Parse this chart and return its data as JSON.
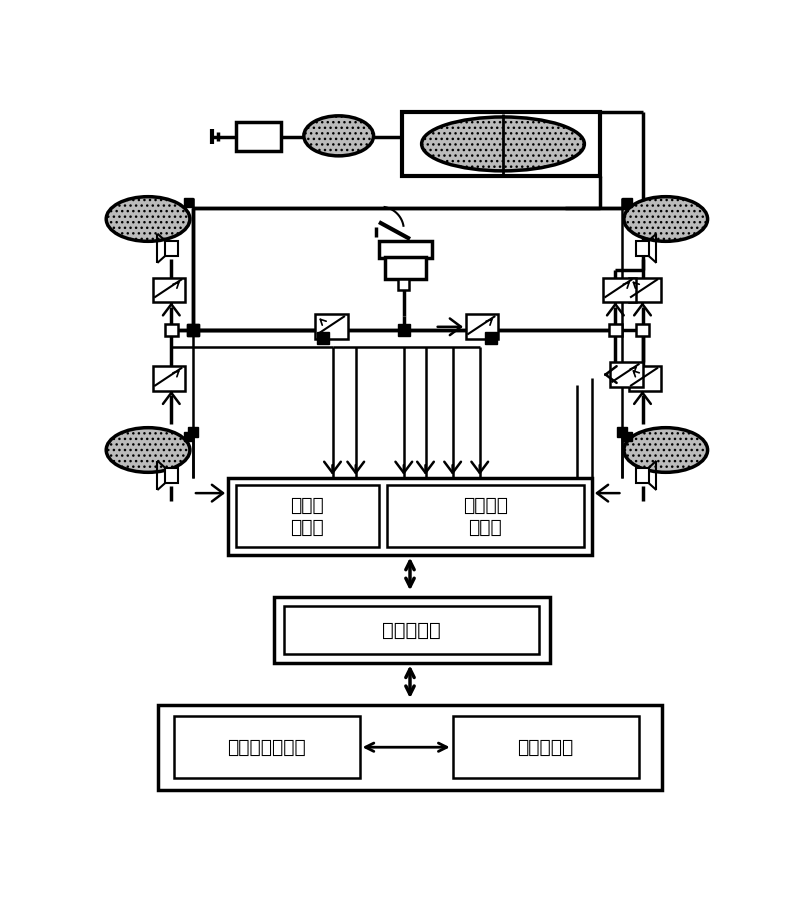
{
  "bg_color": "#ffffff",
  "text_color": "#000000",
  "figsize": [
    8.0,
    9.01
  ],
  "dpi": 100,
  "labels": {
    "signal_circuit": "信号处\n理电路",
    "solenoid_circuit": "电磁阀驱\n动电路",
    "data_card": "数据采集卡",
    "vehicle_model": "整车动力学模型",
    "controller_model": "控制器模型"
  }
}
